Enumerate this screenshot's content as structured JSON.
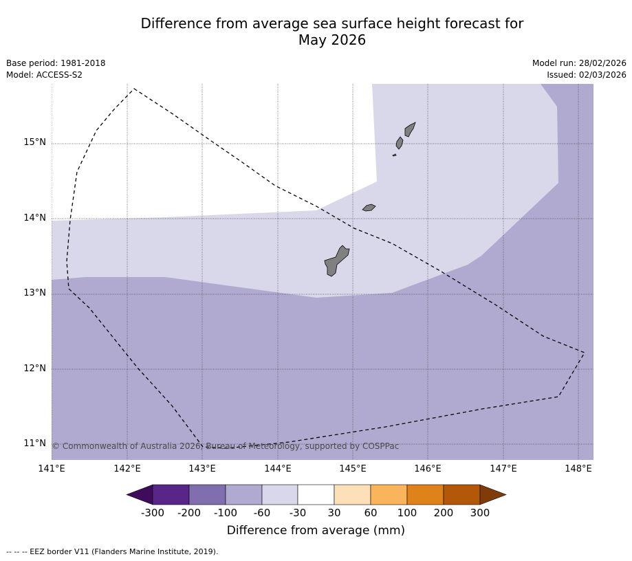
{
  "title": {
    "line1": "Difference from average sea surface height forecast for",
    "line2": "May 2026"
  },
  "meta_left": {
    "base_period": "Base period: 1981-2018",
    "model": "Model: ACCESS-S2"
  },
  "meta_right": {
    "model_run": "Model run: 28/02/2026",
    "issued": "Issued: 02/03/2026"
  },
  "map": {
    "lat_labels": [
      "15°N",
      "14°N",
      "13°N",
      "12°N",
      "11°N"
    ],
    "lon_labels": [
      "141°E",
      "142°E",
      "143°E",
      "144°E",
      "145°E",
      "146°E",
      "147°E",
      "148°E"
    ],
    "copyright": "© Commonwealth of Australia 2026, Bureau of Meteorology, supported by COSPPac",
    "shading_colors": {
      "neutral": "#ffffff",
      "minus_30_to_60": "#d8d8ea",
      "minus_60_to_100": "#b0aad0"
    },
    "land_color": "#808080"
  },
  "colorbar": {
    "tick_labels": [
      "-300",
      "-200",
      "-100",
      "-60",
      "-30",
      "30",
      "60",
      "100",
      "200",
      "300"
    ],
    "colors": [
      "#3f0b5c",
      "#582588",
      "#806eae",
      "#b0aad0",
      "#d8d8ea",
      "#ffffff",
      "#fde0b8",
      "#fab55c",
      "#e0821a",
      "#b35708",
      "#7f3b08"
    ],
    "title": "Difference from average (mm)"
  },
  "footer": {
    "legend": "--  --  -- EEZ border V11 (Flanders Marine Institute, 2019)."
  }
}
